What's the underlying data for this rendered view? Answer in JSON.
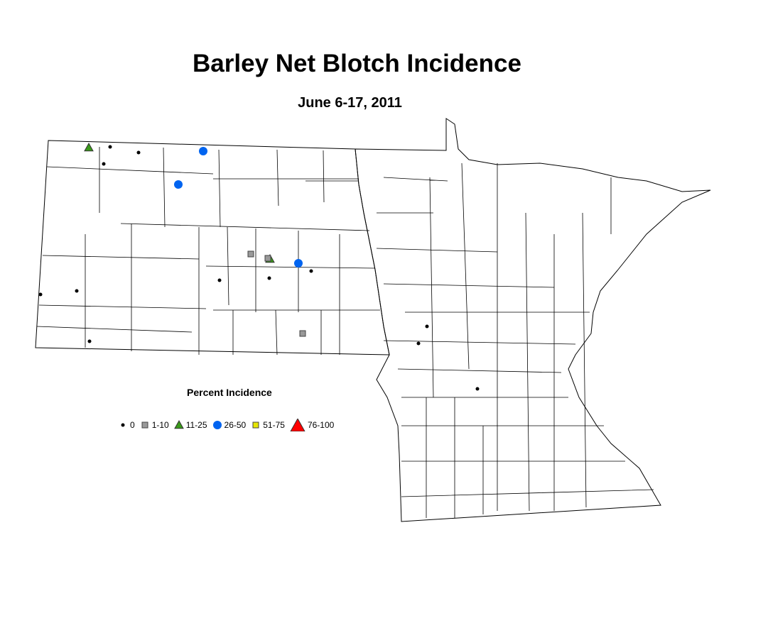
{
  "title": "Barley Net Blotch Incidence",
  "subtitle": "June 6-17, 2011",
  "legend": {
    "title": "Percent Incidence",
    "items": [
      {
        "label": "0",
        "shape": "dot",
        "color": "#000000"
      },
      {
        "label": "1-10",
        "shape": "square",
        "color": "#999999"
      },
      {
        "label": "11-25",
        "shape": "triangle",
        "color": "#3a9a1a"
      },
      {
        "label": "26-50",
        "shape": "circle",
        "color": "#0064f0"
      },
      {
        "label": "51-75",
        "shape": "square",
        "color": "#e6e600"
      },
      {
        "label": "76-100",
        "shape": "triangle",
        "color": "#ff0000"
      }
    ]
  },
  "sites": [
    "11-25",
    "11-25",
    "26-50",
    "26-50",
    "26-50",
    "1-10",
    "1-10",
    "1-10",
    "0",
    "0",
    "0",
    "0",
    "0",
    "0",
    "0",
    "0",
    "0",
    "0",
    "0",
    "0"
  ]
}
